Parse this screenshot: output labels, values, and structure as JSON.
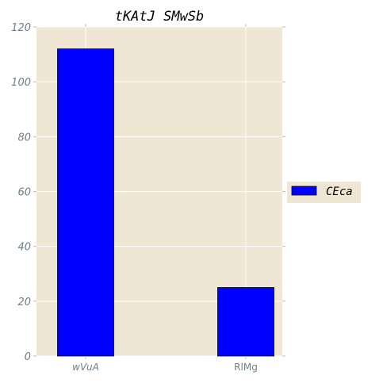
{
  "chart_data": {
    "type": "bar",
    "title": "tKAtJ  SMwSb",
    "xlabel": "",
    "ylabel": "",
    "categories": [
      "wVuA",
      "RlMg"
    ],
    "series": [
      {
        "name": "CEca",
        "values": [
          112,
          25
        ]
      }
    ],
    "ylim": [
      0,
      120
    ],
    "yticks": [
      0,
      20,
      40,
      60,
      80,
      100,
      120
    ],
    "grid": true,
    "legend_position": "right",
    "colors": {
      "bar": "#0000ff",
      "bar_edge": "#000000",
      "plot_background": "#efe6d3",
      "grid": "#ffffff",
      "tick_text": "#6e7f8a"
    }
  }
}
